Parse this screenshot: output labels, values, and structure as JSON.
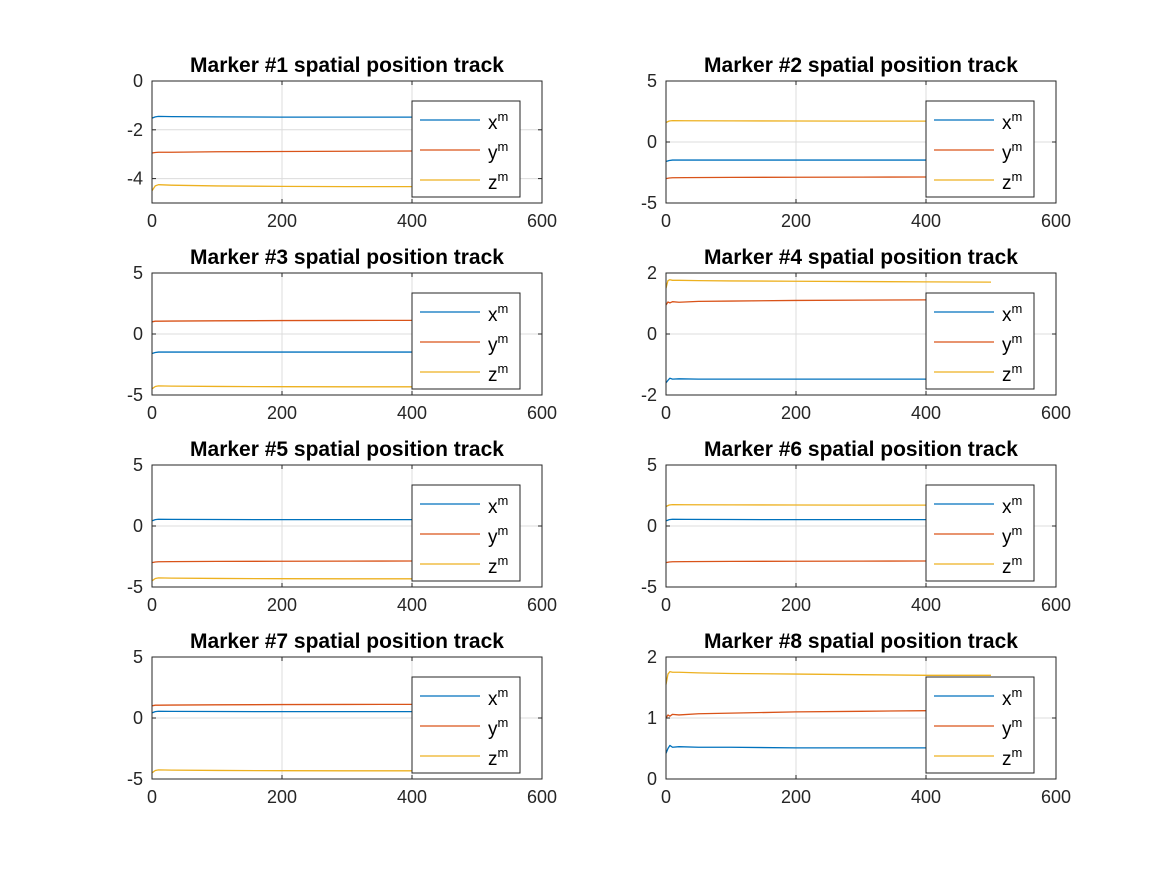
{
  "colors": {
    "x": "#0072BD",
    "y": "#D95319",
    "z": "#EDB120",
    "axis": "#262626",
    "grid": "#dcdcdc",
    "background": "#ffffff"
  },
  "chart_data": [
    {
      "type": "line",
      "title": "Marker #1 spatial position track",
      "xlim": [
        0,
        600
      ],
      "ylim": [
        -5,
        0
      ],
      "xticks": [
        0,
        200,
        400,
        600
      ],
      "yticks": [
        -4,
        -2,
        0
      ],
      "grid": true,
      "legend_position": "top-right",
      "series": [
        {
          "name": "x",
          "name_sup": "m",
          "color_key": "x",
          "x": [
            0,
            5,
            10,
            30,
            100,
            200,
            300,
            400,
            500
          ],
          "y": [
            -1.52,
            -1.47,
            -1.45,
            -1.46,
            -1.47,
            -1.48,
            -1.48,
            -1.48,
            -1.48
          ]
        },
        {
          "name": "y",
          "name_sup": "m",
          "color_key": "y",
          "x": [
            0,
            5,
            10,
            30,
            100,
            200,
            300,
            400,
            500
          ],
          "y": [
            -2.95,
            -2.93,
            -2.92,
            -2.92,
            -2.9,
            -2.89,
            -2.88,
            -2.87,
            -2.86
          ]
        },
        {
          "name": "z",
          "name_sup": "m",
          "color_key": "z",
          "x": [
            0,
            5,
            10,
            30,
            100,
            200,
            300,
            400,
            500
          ],
          "y": [
            -4.5,
            -4.3,
            -4.25,
            -4.27,
            -4.3,
            -4.32,
            -4.33,
            -4.33,
            -4.34
          ]
        }
      ]
    },
    {
      "type": "line",
      "title": "Marker #2 spatial position track",
      "xlim": [
        0,
        600
      ],
      "ylim": [
        -5,
        5
      ],
      "xticks": [
        0,
        200,
        400,
        600
      ],
      "yticks": [
        -5,
        0,
        5
      ],
      "grid": true,
      "legend_position": "top-right",
      "series": [
        {
          "name": "x",
          "name_sup": "m",
          "color_key": "x",
          "x": [
            0,
            5,
            10,
            30,
            100,
            200,
            300,
            400,
            500
          ],
          "y": [
            -1.6,
            -1.52,
            -1.48,
            -1.48,
            -1.48,
            -1.48,
            -1.48,
            -1.48,
            -1.48
          ]
        },
        {
          "name": "y",
          "name_sup": "m",
          "color_key": "y",
          "x": [
            0,
            5,
            10,
            30,
            100,
            200,
            300,
            400,
            500
          ],
          "y": [
            -3.0,
            -2.95,
            -2.93,
            -2.92,
            -2.9,
            -2.89,
            -2.88,
            -2.87,
            -2.86
          ]
        },
        {
          "name": "z",
          "name_sup": "m",
          "color_key": "z",
          "x": [
            0,
            5,
            10,
            30,
            100,
            200,
            300,
            400,
            500
          ],
          "y": [
            1.6,
            1.72,
            1.75,
            1.74,
            1.73,
            1.72,
            1.71,
            1.71,
            1.7
          ]
        }
      ]
    },
    {
      "type": "line",
      "title": "Marker #3 spatial position track",
      "xlim": [
        0,
        600
      ],
      "ylim": [
        -5,
        5
      ],
      "xticks": [
        0,
        200,
        400,
        600
      ],
      "yticks": [
        -5,
        0,
        5
      ],
      "grid": true,
      "legend_position": "top-right",
      "series": [
        {
          "name": "x",
          "name_sup": "m",
          "color_key": "x",
          "x": [
            0,
            5,
            10,
            30,
            100,
            200,
            300,
            400,
            500
          ],
          "y": [
            -1.6,
            -1.52,
            -1.48,
            -1.48,
            -1.48,
            -1.48,
            -1.48,
            -1.48,
            -1.48
          ]
        },
        {
          "name": "y",
          "name_sup": "m",
          "color_key": "y",
          "x": [
            0,
            5,
            10,
            30,
            100,
            200,
            300,
            400,
            500
          ],
          "y": [
            1.0,
            1.05,
            1.05,
            1.06,
            1.08,
            1.1,
            1.11,
            1.12,
            1.13
          ]
        },
        {
          "name": "z",
          "name_sup": "m",
          "color_key": "z",
          "x": [
            0,
            5,
            10,
            30,
            100,
            200,
            300,
            400,
            500
          ],
          "y": [
            -4.5,
            -4.3,
            -4.25,
            -4.27,
            -4.3,
            -4.32,
            -4.33,
            -4.33,
            -4.34
          ]
        }
      ]
    },
    {
      "type": "line",
      "title": "Marker #4 spatial position track",
      "xlim": [
        0,
        600
      ],
      "ylim": [
        -2,
        2
      ],
      "xticks": [
        0,
        200,
        400,
        600
      ],
      "yticks": [
        -2,
        0,
        2
      ],
      "grid": true,
      "legend_position": "top-right",
      "series": [
        {
          "name": "x",
          "name_sup": "m",
          "color_key": "x",
          "x": [
            0,
            3,
            6,
            10,
            20,
            50,
            100,
            200,
            300,
            400,
            500
          ],
          "y": [
            -1.6,
            -1.52,
            -1.45,
            -1.48,
            -1.47,
            -1.48,
            -1.48,
            -1.48,
            -1.48,
            -1.48,
            -1.48
          ]
        },
        {
          "name": "y",
          "name_sup": "m",
          "color_key": "y",
          "x": [
            0,
            3,
            6,
            10,
            20,
            50,
            100,
            200,
            300,
            400,
            500
          ],
          "y": [
            0.95,
            1.05,
            1.02,
            1.06,
            1.04,
            1.07,
            1.08,
            1.1,
            1.11,
            1.12,
            1.13
          ]
        },
        {
          "name": "z",
          "name_sup": "m",
          "color_key": "z",
          "x": [
            0,
            3,
            6,
            10,
            20,
            50,
            100,
            200,
            300,
            400,
            500
          ],
          "y": [
            1.5,
            1.75,
            1.78,
            1.76,
            1.76,
            1.75,
            1.74,
            1.73,
            1.72,
            1.71,
            1.7
          ]
        }
      ]
    },
    {
      "type": "line",
      "title": "Marker #5 spatial position track",
      "xlim": [
        0,
        600
      ],
      "ylim": [
        -5,
        5
      ],
      "xticks": [
        0,
        200,
        400,
        600
      ],
      "yticks": [
        -5,
        0,
        5
      ],
      "grid": true,
      "legend_position": "top-right",
      "series": [
        {
          "name": "x",
          "name_sup": "m",
          "color_key": "x",
          "x": [
            0,
            5,
            10,
            30,
            100,
            200,
            300,
            400,
            500
          ],
          "y": [
            0.42,
            0.52,
            0.55,
            0.54,
            0.53,
            0.52,
            0.52,
            0.52,
            0.52
          ]
        },
        {
          "name": "y",
          "name_sup": "m",
          "color_key": "y",
          "x": [
            0,
            5,
            10,
            30,
            100,
            200,
            300,
            400,
            500
          ],
          "y": [
            -3.0,
            -2.95,
            -2.93,
            -2.92,
            -2.9,
            -2.89,
            -2.88,
            -2.87,
            -2.86
          ]
        },
        {
          "name": "z",
          "name_sup": "m",
          "color_key": "z",
          "x": [
            0,
            5,
            10,
            30,
            100,
            200,
            300,
            400,
            500
          ],
          "y": [
            -4.5,
            -4.3,
            -4.25,
            -4.27,
            -4.3,
            -4.32,
            -4.33,
            -4.33,
            -4.34
          ]
        }
      ]
    },
    {
      "type": "line",
      "title": "Marker #6 spatial position track",
      "xlim": [
        0,
        600
      ],
      "ylim": [
        -5,
        5
      ],
      "xticks": [
        0,
        200,
        400,
        600
      ],
      "yticks": [
        -5,
        0,
        5
      ],
      "grid": true,
      "legend_position": "top-right",
      "series": [
        {
          "name": "x",
          "name_sup": "m",
          "color_key": "x",
          "x": [
            0,
            5,
            10,
            30,
            100,
            200,
            300,
            400,
            500
          ],
          "y": [
            0.42,
            0.52,
            0.55,
            0.54,
            0.53,
            0.52,
            0.52,
            0.52,
            0.52
          ]
        },
        {
          "name": "y",
          "name_sup": "m",
          "color_key": "y",
          "x": [
            0,
            5,
            10,
            30,
            100,
            200,
            300,
            400,
            500
          ],
          "y": [
            -3.0,
            -2.95,
            -2.93,
            -2.92,
            -2.9,
            -2.89,
            -2.88,
            -2.87,
            -2.86
          ]
        },
        {
          "name": "z",
          "name_sup": "m",
          "color_key": "z",
          "x": [
            0,
            5,
            10,
            30,
            100,
            200,
            300,
            400,
            500
          ],
          "y": [
            1.6,
            1.72,
            1.75,
            1.74,
            1.73,
            1.72,
            1.71,
            1.71,
            1.7
          ]
        }
      ]
    },
    {
      "type": "line",
      "title": "Marker #7 spatial position track",
      "xlim": [
        0,
        600
      ],
      "ylim": [
        -5,
        5
      ],
      "xticks": [
        0,
        200,
        400,
        600
      ],
      "yticks": [
        -5,
        0,
        5
      ],
      "grid": true,
      "legend_position": "top-right",
      "series": [
        {
          "name": "x",
          "name_sup": "m",
          "color_key": "x",
          "x": [
            0,
            5,
            10,
            30,
            100,
            200,
            300,
            400,
            500
          ],
          "y": [
            0.42,
            0.52,
            0.55,
            0.54,
            0.53,
            0.52,
            0.52,
            0.52,
            0.52
          ]
        },
        {
          "name": "y",
          "name_sup": "m",
          "color_key": "y",
          "x": [
            0,
            5,
            10,
            30,
            100,
            200,
            300,
            400,
            500
          ],
          "y": [
            1.0,
            1.05,
            1.05,
            1.06,
            1.08,
            1.1,
            1.11,
            1.12,
            1.13
          ]
        },
        {
          "name": "z",
          "name_sup": "m",
          "color_key": "z",
          "x": [
            0,
            5,
            10,
            30,
            100,
            200,
            300,
            400,
            500
          ],
          "y": [
            -4.5,
            -4.3,
            -4.25,
            -4.27,
            -4.3,
            -4.32,
            -4.33,
            -4.33,
            -4.34
          ]
        }
      ]
    },
    {
      "type": "line",
      "title": "Marker #8 spatial position track",
      "xlim": [
        0,
        600
      ],
      "ylim": [
        0,
        2
      ],
      "xticks": [
        0,
        200,
        400,
        600
      ],
      "yticks": [
        0,
        1,
        2
      ],
      "grid": true,
      "legend_position": "top-right",
      "series": [
        {
          "name": "x",
          "name_sup": "m",
          "color_key": "x",
          "x": [
            0,
            3,
            6,
            10,
            20,
            50,
            100,
            200,
            300,
            400,
            500
          ],
          "y": [
            0.42,
            0.5,
            0.55,
            0.52,
            0.53,
            0.52,
            0.52,
            0.51,
            0.51,
            0.51,
            0.51
          ]
        },
        {
          "name": "y",
          "name_sup": "m",
          "color_key": "y",
          "x": [
            0,
            3,
            6,
            10,
            20,
            50,
            100,
            200,
            300,
            400,
            500
          ],
          "y": [
            1.0,
            1.05,
            1.03,
            1.06,
            1.05,
            1.07,
            1.08,
            1.1,
            1.11,
            1.12,
            1.13
          ]
        },
        {
          "name": "z",
          "name_sup": "m",
          "color_key": "z",
          "x": [
            0,
            3,
            6,
            10,
            20,
            50,
            100,
            200,
            300,
            400,
            500
          ],
          "y": [
            1.55,
            1.72,
            1.76,
            1.75,
            1.75,
            1.74,
            1.73,
            1.72,
            1.71,
            1.7,
            1.7
          ]
        }
      ]
    }
  ]
}
